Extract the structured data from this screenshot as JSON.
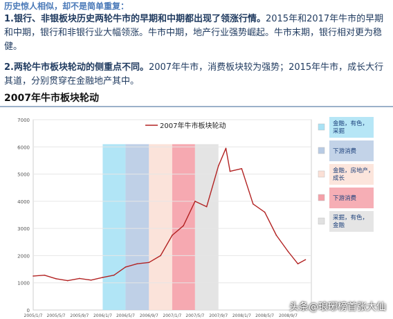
{
  "header": {
    "heading": "历史惊人相似，却不是简单重复：",
    "p1_bold": "1.银行、非银板块历史两轮牛市的早期和中期都出现了领涨行情。",
    "p1_rest": "2015年和2017年牛市的早期和中期，银行和非银行业大幅领涨。牛市中期，地产行业强势崛起。牛市末期，银行相对更为稳健。",
    "p2_bold": "2.两轮牛市板块轮动的侧重点不同。",
    "p2_rest": "2007年牛市，消费板块较为强势；2015年牛市，成长大行其道，分别贯穿在金融地产其中。"
  },
  "chart_title": "2007年牛市板块轮动",
  "watermark": "头条@琅琊榜首张大仙",
  "chart_data": {
    "type": "line",
    "title": "2007年牛市板块轮动",
    "series": [
      {
        "name": "2007年牛市板块轮动",
        "color": "#b22222",
        "x": [
          "2005/1/7",
          "2005/3/7",
          "2005/5/7",
          "2005/7/7",
          "2005/9/7",
          "2005/11/7",
          "2006/1/7",
          "2006/3/7",
          "2006/5/7",
          "2006/7/7",
          "2006/9/7",
          "2006/11/7",
          "2007/1/7",
          "2007/3/7",
          "2007/5/7",
          "2007/7/7",
          "2007/9/7",
          "2007/10/16",
          "2007/11/7",
          "2008/1/7",
          "2008/3/7",
          "2008/5/7",
          "2008/7/7",
          "2008/9/7",
          "2008/10/28",
          "2008/12/7"
        ],
        "values": [
          1250,
          1280,
          1150,
          1080,
          1160,
          1100,
          1200,
          1280,
          1580,
          1700,
          1750,
          2000,
          2750,
          3100,
          4000,
          3800,
          5300,
          5950,
          5100,
          5200,
          3900,
          3600,
          2750,
          2150,
          1700,
          1850
        ]
      }
    ],
    "ylim": [
      0,
      7000
    ],
    "yticks": [
      0,
      1000,
      2000,
      3000,
      4000,
      5000,
      6000,
      7000
    ],
    "xticks": [
      "2005/1/7",
      "2005/5/7",
      "2005/9/7",
      "2006/1/7",
      "2006/5/7",
      "2006/9/7",
      "2007/1/7",
      "2007/5/7",
      "2007/9/7",
      "2008/1/7",
      "2008/5/7",
      "2008/9/7"
    ],
    "grid": true,
    "bands": [
      {
        "label": "金融，有色，采掘",
        "color": "#a9e2f5",
        "from": "2006/1/7",
        "to": "2006/5/7"
      },
      {
        "label": "下游消费",
        "color": "#b8cbe4",
        "from": "2006/5/7",
        "to": "2006/9/7"
      },
      {
        "label": "金融，房地产，成长",
        "color": "#fbe0d6",
        "from": "2006/9/7",
        "to": "2007/1/7"
      },
      {
        "label": "下游消费",
        "color": "#f5a0a8",
        "from": "2007/1/7",
        "to": "2007/5/7"
      },
      {
        "label": "采掘，有色，金融",
        "color": "#e1e1e1",
        "from": "2007/5/7",
        "to": "2007/9/7"
      }
    ],
    "legend_position": "top-right"
  }
}
